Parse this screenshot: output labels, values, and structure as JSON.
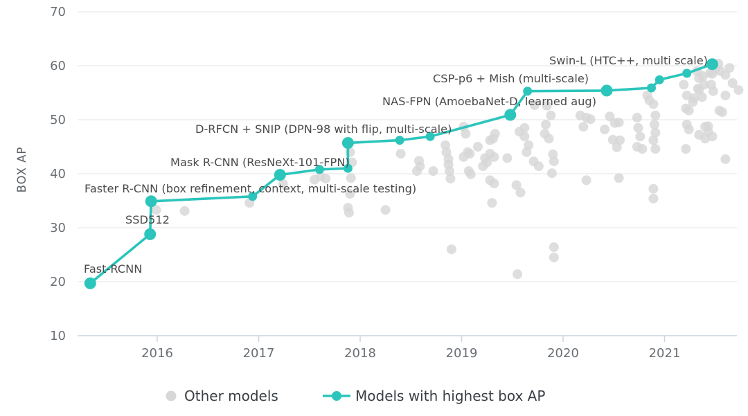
{
  "chart_data": {
    "type": "scatter",
    "title": "",
    "xlabel": "",
    "ylabel": "BOX AP",
    "ylim": [
      10,
      70
    ],
    "yticks": [
      70,
      60,
      50,
      40,
      30,
      20,
      10
    ],
    "xticks": [
      2016,
      2017,
      2018,
      2019,
      2020,
      2021
    ],
    "xlim": [
      2015.2,
      2021.85
    ],
    "grid": "horizontal",
    "legend_position": "bottom-center",
    "colors": {
      "sota_line": "#2cc5bc",
      "other_points": "#d7d7d7",
      "gridline": "#eaeaea",
      "axis_line": "#ccd4dd",
      "tick_text": "#6a6f75",
      "annotation_text": "#4a4a4a",
      "legend_text": "#3a3f45"
    },
    "series": [
      {
        "name": "Other models",
        "type": "scatter",
        "color": "#d7d7d7",
        "points": [
          [
            2015.99,
            33.3
          ],
          [
            2016.27,
            33.1
          ],
          [
            2016.91,
            34.6
          ],
          [
            2017.24,
            38.1
          ],
          [
            2017.55,
            38.9
          ],
          [
            2017.61,
            39.5
          ],
          [
            2017.66,
            39.1
          ],
          [
            2017.9,
            44.0
          ],
          [
            2017.92,
            42.1
          ],
          [
            2017.91,
            39.2
          ],
          [
            2017.9,
            36.3
          ],
          [
            2017.88,
            33.7
          ],
          [
            2017.89,
            32.8
          ],
          [
            2018.25,
            33.3
          ],
          [
            2018.4,
            43.7
          ],
          [
            2018.56,
            40.5
          ],
          [
            2018.58,
            42.4
          ],
          [
            2018.59,
            41.4
          ],
          [
            2018.72,
            40.5
          ],
          [
            2018.84,
            45.3
          ],
          [
            2018.85,
            44.0
          ],
          [
            2018.87,
            42.7
          ],
          [
            2018.87,
            41.7
          ],
          [
            2018.88,
            40.5
          ],
          [
            2018.89,
            39.1
          ],
          [
            2018.9,
            26.0
          ],
          [
            2019.02,
            48.7
          ],
          [
            2019.04,
            47.4
          ],
          [
            2019.06,
            44.0
          ],
          [
            2019.02,
            43.1
          ],
          [
            2019.08,
            43.7
          ],
          [
            2019.07,
            40.5
          ],
          [
            2019.09,
            39.9
          ],
          [
            2019.16,
            45.0
          ],
          [
            2019.21,
            41.4
          ],
          [
            2019.23,
            42.9
          ],
          [
            2019.25,
            42.1
          ],
          [
            2019.28,
            46.2
          ],
          [
            2019.31,
            46.5
          ],
          [
            2019.33,
            47.4
          ],
          [
            2019.28,
            43.7
          ],
          [
            2019.32,
            43.1
          ],
          [
            2019.28,
            38.8
          ],
          [
            2019.32,
            38.2
          ],
          [
            2019.3,
            34.6
          ],
          [
            2019.45,
            42.9
          ],
          [
            2019.54,
            37.9
          ],
          [
            2019.55,
            21.4
          ],
          [
            2019.58,
            36.5
          ],
          [
            2019.57,
            47.8
          ],
          [
            2019.62,
            48.5
          ],
          [
            2019.62,
            46.9
          ],
          [
            2019.64,
            44.0
          ],
          [
            2019.66,
            45.3
          ],
          [
            2019.71,
            42.3
          ],
          [
            2019.72,
            52.7
          ],
          [
            2019.76,
            41.4
          ],
          [
            2019.83,
            49.1
          ],
          [
            2019.82,
            47.4
          ],
          [
            2019.84,
            52.6
          ],
          [
            2019.86,
            46.5
          ],
          [
            2019.88,
            50.8
          ],
          [
            2019.9,
            43.6
          ],
          [
            2019.91,
            42.3
          ],
          [
            2019.89,
            40.1
          ],
          [
            2019.91,
            26.4
          ],
          [
            2019.91,
            24.5
          ],
          [
            2020.17,
            50.8
          ],
          [
            2020.23,
            50.4
          ],
          [
            2020.27,
            50.1
          ],
          [
            2020.2,
            48.7
          ],
          [
            2020.23,
            38.8
          ],
          [
            2020.41,
            48.2
          ],
          [
            2020.46,
            50.6
          ],
          [
            2020.51,
            49.4
          ],
          [
            2020.55,
            49.5
          ],
          [
            2020.49,
            46.3
          ],
          [
            2020.53,
            44.9
          ],
          [
            2020.56,
            46.2
          ],
          [
            2020.55,
            39.2
          ],
          [
            2020.73,
            50.4
          ],
          [
            2020.74,
            48.5
          ],
          [
            2020.76,
            46.9
          ],
          [
            2020.73,
            45.0
          ],
          [
            2020.78,
            44.6
          ],
          [
            2020.83,
            54.5
          ],
          [
            2020.85,
            53.6
          ],
          [
            2020.89,
            52.9
          ],
          [
            2020.91,
            50.8
          ],
          [
            2020.9,
            49.1
          ],
          [
            2020.91,
            47.6
          ],
          [
            2020.89,
            46.2
          ],
          [
            2020.91,
            44.6
          ],
          [
            2020.89,
            37.2
          ],
          [
            2020.89,
            35.4
          ],
          [
            2021.19,
            56.5
          ],
          [
            2021.22,
            54.5
          ],
          [
            2021.21,
            52.1
          ],
          [
            2021.24,
            51.7
          ],
          [
            2021.22,
            49.1
          ],
          [
            2021.24,
            48.2
          ],
          [
            2021.21,
            44.6
          ],
          [
            2021.28,
            53.3
          ],
          [
            2021.29,
            54.0
          ],
          [
            2021.33,
            55.8
          ],
          [
            2021.32,
            59.0
          ],
          [
            2021.34,
            57.7
          ],
          [
            2021.38,
            58.1
          ],
          [
            2021.34,
            55.5
          ],
          [
            2021.37,
            54.2
          ],
          [
            2021.39,
            56.5
          ],
          [
            2021.4,
            48.7
          ],
          [
            2021.43,
            48.8
          ],
          [
            2021.43,
            47.8
          ],
          [
            2021.34,
            47.2
          ],
          [
            2021.4,
            46.5
          ],
          [
            2021.45,
            58.7
          ],
          [
            2021.46,
            56.5
          ],
          [
            2021.47,
            58.5
          ],
          [
            2021.48,
            55.3
          ],
          [
            2021.5,
            59.4
          ],
          [
            2021.53,
            60.4
          ],
          [
            2021.55,
            59.0
          ],
          [
            2021.54,
            51.7
          ],
          [
            2021.57,
            51.4
          ],
          [
            2021.47,
            46.9
          ],
          [
            2021.6,
            42.7
          ],
          [
            2021.6,
            58.3
          ],
          [
            2021.64,
            59.6
          ],
          [
            2021.6,
            54.5
          ],
          [
            2021.67,
            56.8
          ],
          [
            2021.73,
            55.5
          ]
        ]
      },
      {
        "name": "Models with highest box AP",
        "type": "line",
        "color": "#2cc5bc",
        "points": [
          [
            2015.34,
            19.7
          ],
          [
            2015.93,
            28.8
          ],
          [
            2015.94,
            34.9
          ],
          [
            2016.94,
            35.8
          ],
          [
            2017.21,
            39.8
          ],
          [
            2017.6,
            40.8
          ],
          [
            2017.88,
            41.0
          ],
          [
            2017.88,
            45.7
          ],
          [
            2018.39,
            46.2
          ],
          [
            2018.69,
            46.9
          ],
          [
            2019.48,
            50.9
          ],
          [
            2019.65,
            55.3
          ],
          [
            2020.43,
            55.4
          ],
          [
            2020.87,
            55.9
          ],
          [
            2020.95,
            57.4
          ],
          [
            2021.22,
            58.6
          ],
          [
            2021.47,
            60.3
          ]
        ]
      }
    ],
    "annotations": [
      {
        "text": "Fast-RCNN",
        "year": 2015.34,
        "ap": 19.7,
        "lx": 121,
        "ly": 394,
        "anchor": "start"
      },
      {
        "text": "SSD512",
        "year": 2015.93,
        "ap": 28.8,
        "lx": 181,
        "ly": 323,
        "anchor": "start"
      },
      {
        "text": "Faster R-CNN (box refinement, context, multi-scale testing)",
        "year": 2015.94,
        "ap": 34.9,
        "lx": 122,
        "ly": 278,
        "anchor": "start"
      },
      {
        "text": "Mask R-CNN (ResNeXt-101-FPN)",
        "year": 2017.21,
        "ap": 39.8,
        "lx": 246,
        "ly": 240,
        "anchor": "start"
      },
      {
        "text": "D-RFCN + SNIP (DPN-98 with flip, multi-scale)",
        "year": 2017.88,
        "ap": 45.7,
        "lx": 282,
        "ly": 192,
        "anchor": "start"
      },
      {
        "text": "NAS-FPN (AmoebaNet-D, learned aug)",
        "year": 2019.48,
        "ap": 50.9,
        "lx": 552,
        "ly": 152,
        "anchor": "start"
      },
      {
        "text": "CSP-p6 + Mish (multi-scale)",
        "year": 2020.43,
        "ap": 55.4,
        "lx": 625,
        "ly": 119,
        "anchor": "start"
      },
      {
        "text": "Swin-L (HTC++, multi scale)",
        "year": 2021.47,
        "ap": 60.3,
        "lx": 793,
        "ly": 93,
        "anchor": "start"
      }
    ],
    "legend": [
      {
        "label": "Other models",
        "marker": "dot",
        "color": "#d7d7d7"
      },
      {
        "label": "Models with highest box AP",
        "marker": "line-dot",
        "color": "#2cc5bc"
      }
    ]
  }
}
